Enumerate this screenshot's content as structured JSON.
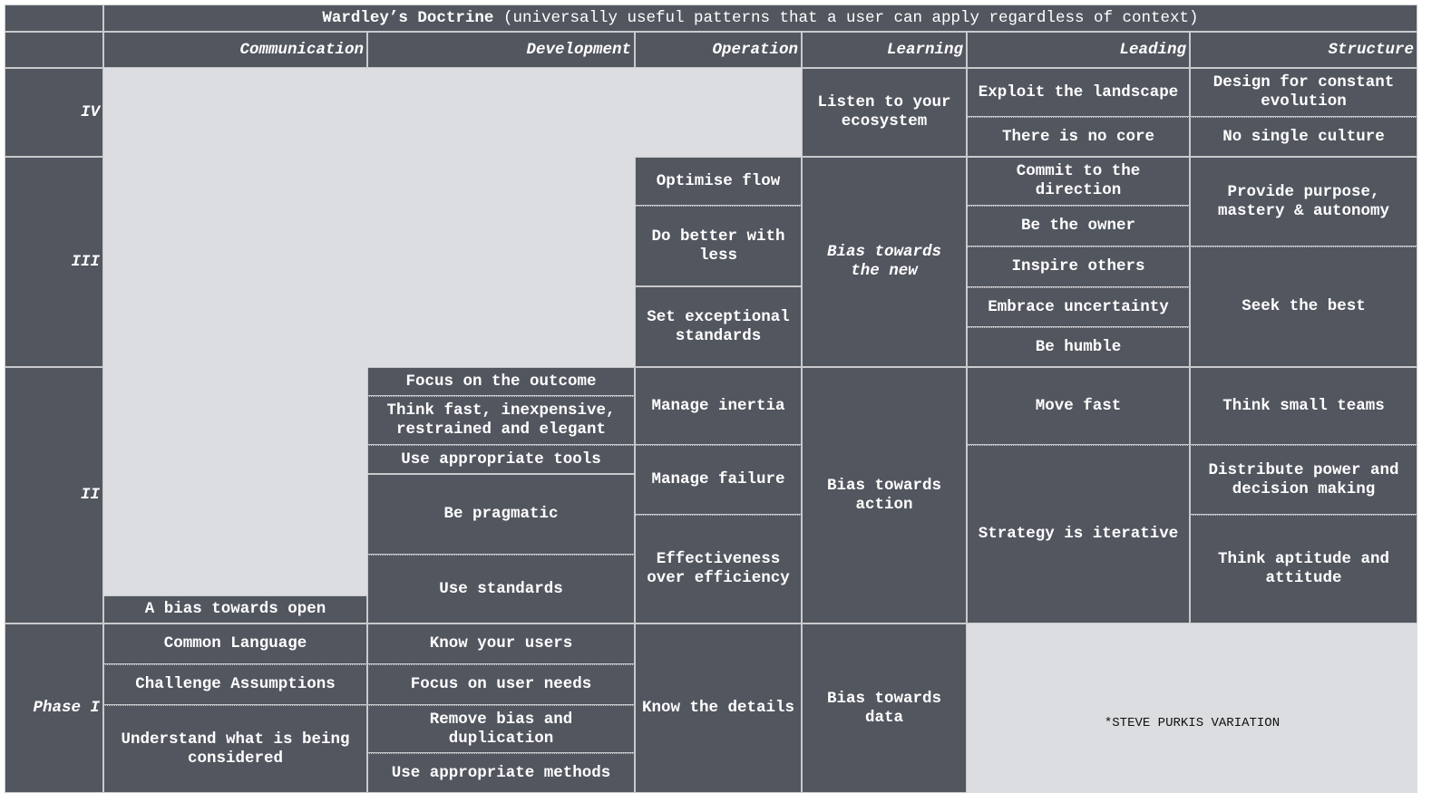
{
  "title": {
    "bold": "Wardley’s Doctrine",
    "rest": " (universally useful patterns that a user can apply regardless of context)"
  },
  "columns": [
    "Communication",
    "Development",
    "Operation",
    "Learning",
    "Leading",
    "Structure"
  ],
  "phases": [
    "IV",
    "III",
    "II",
    "Phase I"
  ],
  "communication": {
    "ii": [
      "A bias towards open"
    ],
    "i": [
      "Common Language",
      "Challenge Assumptions",
      "Understand what is being considered"
    ]
  },
  "development": {
    "ii": [
      "Focus on the outcome",
      "Think fast, inexpensive, restrained and elegant",
      "Use appropriate tools",
      "Be pragmatic",
      "Use standards"
    ],
    "i": [
      "Know your users",
      "Focus on user needs",
      "Remove bias and duplication",
      "Use appropriate methods"
    ]
  },
  "operation": {
    "iii": [
      "Optimise flow",
      "Do better with less",
      "Set exceptional standards"
    ],
    "ii": [
      "Manage inertia",
      "Manage failure",
      "Effectiveness over efficiency"
    ],
    "i": [
      "Know the details"
    ]
  },
  "learning": {
    "iv": "Listen to your ecosystem",
    "iii": "Bias towards the new",
    "ii": "Bias towards action",
    "i": "Bias towards data"
  },
  "leading": {
    "iv": [
      "Exploit the landscape",
      "There is no core"
    ],
    "iii": [
      "Commit to the direction",
      "Be the owner",
      "Inspire others",
      "Embrace uncertainty",
      "Be humble"
    ],
    "ii": [
      "Move fast",
      "Strategy is iterative"
    ]
  },
  "structure": {
    "iv": [
      "Design for constant evolution",
      "No single culture"
    ],
    "iii": [
      "Provide purpose, mastery & autonomy",
      "Seek the best"
    ],
    "ii": [
      "Think small teams",
      "Distribute power and decision making",
      "Think aptitude and attitude"
    ]
  },
  "note": "*STEVE PURKIS VARIATION",
  "colors": {
    "cell": "#52565f",
    "empty": "#dcdde0",
    "text": "#ffffff",
    "line": "#c9cacd"
  }
}
